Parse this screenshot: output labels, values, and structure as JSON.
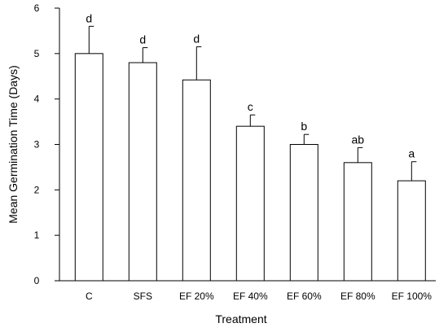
{
  "chart_data": {
    "type": "bar",
    "title": "",
    "xlabel": "Treatment",
    "ylabel": "Mean Germination Time (Days)",
    "categories": [
      "C",
      "SFS",
      "EF 20%",
      "EF 40%",
      "EF 60%",
      "EF 80%",
      "EF 100%"
    ],
    "values": [
      5.0,
      4.8,
      4.42,
      3.4,
      3.0,
      2.6,
      2.2
    ],
    "errors": [
      0.6,
      0.33,
      0.73,
      0.25,
      0.22,
      0.33,
      0.42
    ],
    "significance_labels": [
      "d",
      "d",
      "d",
      "c",
      "b",
      "ab",
      "a"
    ],
    "ylim": [
      0,
      6
    ],
    "yticks": [
      0,
      1,
      2,
      3,
      4,
      5,
      6
    ],
    "grid": false,
    "legend": "none",
    "bar_fill": "#ffffff",
    "bar_stroke": "#000000"
  }
}
